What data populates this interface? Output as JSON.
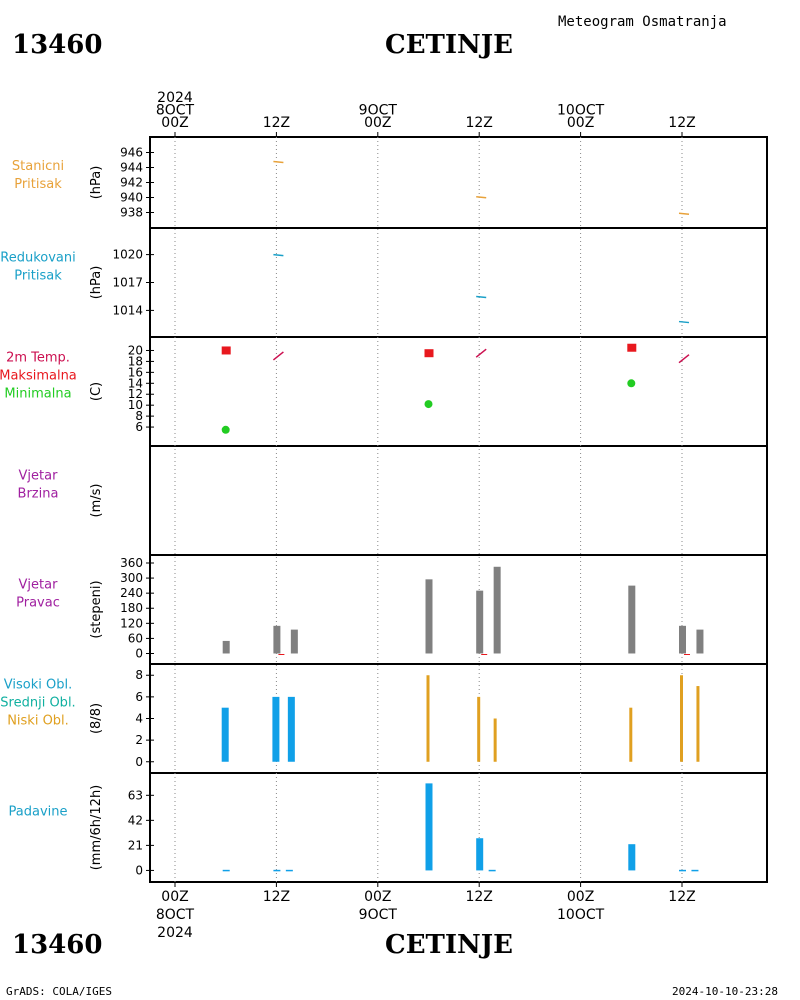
{
  "header": {
    "title": "Meteogram Osmatranja",
    "station_id": "13460",
    "station_name": "CETINJE"
  },
  "footer": {
    "left": "GrADS: COLA/IGES",
    "right": "2024-10-10-23:28",
    "station_id": "13460",
    "station_name": "CETINJE"
  },
  "time_axis": {
    "top_labels": [
      {
        "lines": [
          "2024",
          "8OCT",
          "00Z"
        ]
      },
      {
        "lines": [
          "12Z"
        ]
      },
      {
        "lines": [
          "9OCT",
          "00Z"
        ]
      },
      {
        "lines": [
          "12Z"
        ]
      },
      {
        "lines": [
          "10OCT",
          "00Z"
        ]
      },
      {
        "lines": [
          "12Z"
        ]
      }
    ],
    "bottom_labels": [
      {
        "lines": [
          "00Z",
          "8OCT",
          "2024"
        ]
      },
      {
        "lines": [
          "12Z"
        ]
      },
      {
        "lines": [
          "00Z",
          "9OCT"
        ]
      },
      {
        "lines": [
          "12Z"
        ]
      },
      {
        "lines": [
          "00Z",
          "10OCT"
        ]
      },
      {
        "lines": [
          "12Z"
        ]
      }
    ]
  },
  "colors": {
    "orange": "#e8a23a",
    "cyan": "#1aa0c8",
    "red": "#e8181e",
    "green": "#22cc22",
    "purple": "#a020a0",
    "crimson": "#cc1050",
    "gray": "#808080",
    "blue_bar": "#10a0e8",
    "gold_bar": "#e0a020"
  },
  "chart_data": [
    {
      "type": "line",
      "panel": "stanicni_pritisak",
      "label_lines": [
        "Stanicni",
        "Pritisak"
      ],
      "ylabel": "(hPa)",
      "ylim": [
        937,
        947
      ],
      "yticks": [
        938,
        940,
        942,
        944,
        946
      ],
      "series": [
        {
          "x_hours": [
            12,
            36,
            60
          ],
          "values": [
            944.8,
            940.1,
            937.9
          ]
        }
      ]
    },
    {
      "type": "line",
      "panel": "redukovani_pritisak",
      "label_lines": [
        "Redukovani",
        "Pritisak"
      ],
      "ylabel": "(hPa)",
      "ylim": [
        1012,
        1022
      ],
      "yticks": [
        1014,
        1017,
        1020
      ],
      "series": [
        {
          "x_hours": [
            12,
            36,
            60
          ],
          "values": [
            1020.0,
            1015.5,
            1012.8
          ]
        }
      ]
    },
    {
      "type": "scatter",
      "panel": "temperatura",
      "label_lines": [
        "2m Temp.",
        "Maksimalna",
        "Minimalna"
      ],
      "ylabel": "(C)",
      "ylim": [
        4,
        21
      ],
      "yticks": [
        6,
        8,
        10,
        12,
        14,
        16,
        18,
        20
      ],
      "series": [
        {
          "name": "2m Temp.",
          "x_hours": [
            12,
            36,
            60
          ],
          "values": [
            19.0,
            19.5,
            18.5
          ]
        },
        {
          "name": "Maksimalna",
          "x_hours": [
            6,
            30,
            54
          ],
          "values": [
            20.0,
            19.5,
            20.5
          ]
        },
        {
          "name": "Minimalna",
          "x_hours": [
            6,
            30,
            54
          ],
          "values": [
            5.5,
            10.2,
            14.0
          ]
        }
      ]
    },
    {
      "type": "bar",
      "panel": "vjetar_brzina",
      "label_lines": [
        "Vjetar",
        "Brzina"
      ],
      "ylabel": "(m/s)",
      "series": []
    },
    {
      "type": "bar",
      "panel": "vjetar_pravac",
      "label_lines": [
        "Vjetar",
        "Pravac"
      ],
      "ylabel": "(stepeni)",
      "ylim": [
        -10,
        360
      ],
      "yticks": [
        0,
        60,
        120,
        180,
        240,
        300,
        360
      ],
      "ytick_labels": [
        "0",
        "60",
        "120",
        "180",
        "240",
        "300",
        "360"
      ],
      "series": [
        {
          "x_hours": [
            6,
            12,
            13,
            30,
            36,
            37,
            54,
            60,
            61
          ],
          "values": [
            50,
            110,
            95,
            295,
            250,
            345,
            270,
            110,
            95
          ]
        }
      ]
    },
    {
      "type": "bar",
      "panel": "oblacnost",
      "label_lines": [
        "Visoki Obl.",
        "Srednji Obl.",
        "Niski Obl."
      ],
      "ylabel": "(8/8)",
      "ylim": [
        -0.3,
        8.3
      ],
      "yticks": [
        0,
        2,
        4,
        6,
        8
      ],
      "series": [
        {
          "name": "Visoki Obl.",
          "x_hours": [
            6,
            12,
            13
          ],
          "values": [
            5,
            6,
            6
          ]
        },
        {
          "name": "Niski Obl.",
          "x_hours": [
            30,
            36,
            37,
            54,
            60,
            61
          ],
          "values": [
            8,
            6,
            4,
            5,
            8,
            7
          ]
        }
      ]
    },
    {
      "type": "bar",
      "panel": "padavine",
      "label_lines": [
        "Padavine"
      ],
      "ylabel": "(mm/6h/12h)",
      "ylim": [
        -3,
        75
      ],
      "yticks": [
        0,
        21,
        42,
        63
      ],
      "series": [
        {
          "x_hours": [
            6,
            12,
            13,
            30,
            36,
            37,
            54,
            60,
            61
          ],
          "values": [
            0.5,
            0.5,
            0.5,
            73,
            27,
            0.5,
            22,
            0.5,
            0.5
          ]
        }
      ]
    }
  ]
}
